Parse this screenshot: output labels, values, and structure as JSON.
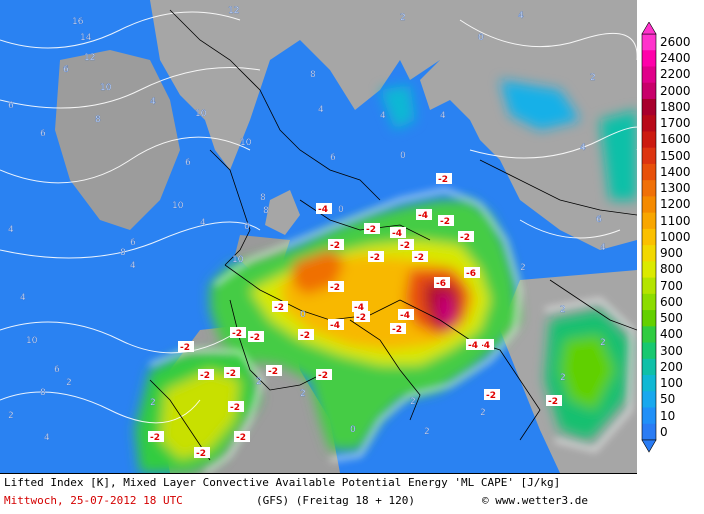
{
  "caption": {
    "line1": "Lifted Index [K], Mixed Layer Convective Available Potential Energy 'ML CAPE' [J/kg]",
    "date": "Mittwoch, 25-07-2012  18 UTC",
    "model": "(GFS)  (Freitag 18 + 120)",
    "credit": "© www.wetter3.de"
  },
  "legend": {
    "labels": [
      "2600",
      "2400",
      "2200",
      "2000",
      "1800",
      "1700",
      "1600",
      "1500",
      "1400",
      "1300",
      "1200",
      "1100",
      "1000",
      "900",
      "800",
      "700",
      "600",
      "500",
      "400",
      "300",
      "200",
      "100",
      "50",
      "10",
      "0"
    ],
    "colors": [
      "#ff33cc",
      "#ff00aa",
      "#e0008a",
      "#c8006a",
      "#a8002c",
      "#b80a18",
      "#cc1a10",
      "#dd3410",
      "#e8500a",
      "#f07008",
      "#f58a00",
      "#f8a600",
      "#fbc000",
      "#f2d800",
      "#dbea00",
      "#b4e400",
      "#8cdc00",
      "#64d000",
      "#30cc40",
      "#18c870",
      "#10c0a8",
      "#10b8d4",
      "#18a8ee",
      "#2090f8",
      "#2a7cf4"
    ]
  },
  "map_labels": {
    "white": [
      "16",
      "14",
      "12",
      "12",
      "10",
      "10",
      "8",
      "8",
      "6",
      "6",
      "6",
      "4",
      "4",
      "4",
      "4",
      "2",
      "2",
      "2",
      "0",
      "0",
      "0",
      "0",
      "0",
      "10",
      "10",
      "8",
      "8",
      "6",
      "6",
      "4",
      "4",
      "4",
      "2",
      "2",
      "2",
      "2",
      "2",
      "2",
      "2",
      "2",
      "2",
      "2",
      "2",
      "0",
      "4",
      "4",
      "4",
      "6",
      "6",
      "4",
      "8",
      "8",
      "10",
      "10",
      "6",
      "4"
    ],
    "red": [
      "-2",
      "-2",
      "-2",
      "-4",
      "-4",
      "-2",
      "-2",
      "-4",
      "-4",
      "-6",
      "-6",
      "-4",
      "-4",
      "-2",
      "-2",
      "-2",
      "-2",
      "-4",
      "-2",
      "-2",
      "-2",
      "-2",
      "-2",
      "-2",
      "-2",
      "-2",
      "-2",
      "-2",
      "-4",
      "-2",
      "-2",
      "-2",
      "-2",
      "-2",
      "-2",
      "-2"
    ]
  }
}
